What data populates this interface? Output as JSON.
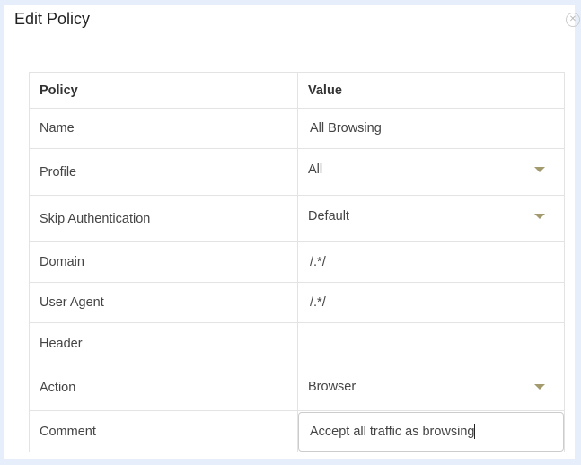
{
  "dialog": {
    "title": "Edit Policy",
    "close_icon": "close-circle-icon"
  },
  "table": {
    "headers": [
      "Policy",
      "Value"
    ],
    "rows": [
      {
        "label": "Name",
        "value": "All Browsing",
        "type": "text"
      },
      {
        "label": "Profile",
        "value": "All",
        "type": "select"
      },
      {
        "label": "Skip Authentication",
        "value": "Default",
        "type": "select"
      },
      {
        "label": "Domain",
        "value": "/.*/",
        "type": "text"
      },
      {
        "label": "User Agent",
        "value": "/.*/",
        "type": "text"
      },
      {
        "label": "Header",
        "value": "",
        "type": "text"
      },
      {
        "label": "Action",
        "value": "Browser",
        "type": "select"
      },
      {
        "label": "Comment",
        "value": "Accept all traffic as browsing",
        "type": "input"
      }
    ]
  },
  "colors": {
    "arrow": "#a39a6e",
    "background": "#e6eefb"
  }
}
